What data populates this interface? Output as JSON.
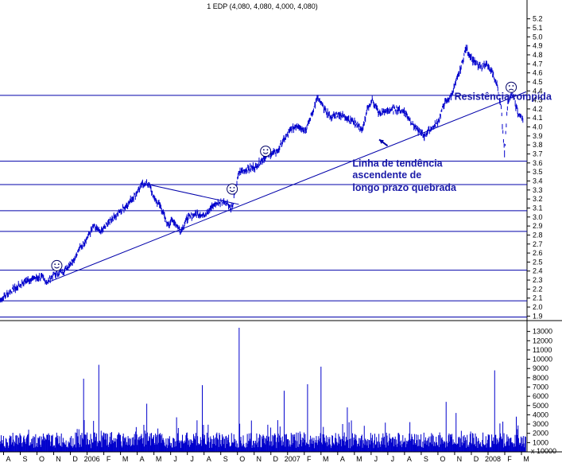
{
  "chart_data": [
    {
      "type": "candlestick",
      "title": "1 EDP (4,080, 4,080, 4,000, 4,080)",
      "ylim": [
        1.85,
        5.25
      ],
      "y_ticks": [
        "5.2",
        "5.1",
        "5.0",
        "4.9",
        "4.8",
        "4.7",
        "4.6",
        "4.5",
        "4.4",
        "4.3",
        "4.2",
        "4.1",
        "4.0",
        "3.9",
        "3.8",
        "3.7",
        "3.6",
        "3.5",
        "3.4",
        "3.3",
        "3.2",
        "3.1",
        "3.0",
        "2.9",
        "2.8",
        "2.7",
        "2.6",
        "2.5",
        "2.4",
        "2.3",
        "2.2",
        "2.1",
        "2.0",
        "1.9"
      ],
      "x_ticks": [
        "A",
        "S",
        "O",
        "N",
        "D",
        "2006",
        "F",
        "M",
        "A",
        "M",
        "J",
        "J",
        "A",
        "S",
        "O",
        "N",
        "D",
        "2007",
        "F",
        "M",
        "A",
        "M",
        "J",
        "J",
        "A",
        "S",
        "O",
        "N",
        "D",
        "2008",
        "F",
        "M"
      ],
      "x_tick_positions": [
        0.5,
        1.5,
        2.5,
        3.5,
        4.5,
        5.5,
        6.5,
        7.5,
        8.5,
        9.5,
        10.5,
        11.5,
        12.5,
        13.5,
        14.5,
        15.5,
        16.5,
        17.5,
        18.5,
        19.5,
        20.5,
        21.5,
        22.5,
        23.5,
        24.5,
        25.5,
        26.5,
        27.5,
        28.5,
        29.5,
        30.5,
        31.5
      ],
      "xlim": [
        0,
        31.5
      ],
      "price_path": [
        [
          0,
          2.08
        ],
        [
          0.5,
          2.16
        ],
        [
          1,
          2.22
        ],
        [
          1.5,
          2.29
        ],
        [
          2,
          2.32
        ],
        [
          2.5,
          2.33
        ],
        [
          2.8,
          2.27
        ],
        [
          3.2,
          2.36
        ],
        [
          3.8,
          2.4
        ],
        [
          4.3,
          2.5
        ],
        [
          4.8,
          2.66
        ],
        [
          5.2,
          2.76
        ],
        [
          5.6,
          2.9
        ],
        [
          6.0,
          2.83
        ],
        [
          6.5,
          2.94
        ],
        [
          7.0,
          3.03
        ],
        [
          7.5,
          3.12
        ],
        [
          8.0,
          3.22
        ],
        [
          8.5,
          3.36
        ],
        [
          8.9,
          3.37
        ],
        [
          9.2,
          3.22
        ],
        [
          9.6,
          3.12
        ],
        [
          10.0,
          2.92
        ],
        [
          10.4,
          2.96
        ],
        [
          10.8,
          2.84
        ],
        [
          11.2,
          2.98
        ],
        [
          11.7,
          3.04
        ],
        [
          12.2,
          3.02
        ],
        [
          12.8,
          3.13
        ],
        [
          13.4,
          3.18
        ],
        [
          13.9,
          3.1
        ],
        [
          14.3,
          3.5
        ],
        [
          14.8,
          3.53
        ],
        [
          15.3,
          3.56
        ],
        [
          15.7,
          3.64
        ],
        [
          16.2,
          3.7
        ],
        [
          16.6,
          3.73
        ],
        [
          17.0,
          3.86
        ],
        [
          17.4,
          3.96
        ],
        [
          17.8,
          4.02
        ],
        [
          18.3,
          3.96
        ],
        [
          18.7,
          4.16
        ],
        [
          19.0,
          4.32
        ],
        [
          19.4,
          4.2
        ],
        [
          19.8,
          4.11
        ],
        [
          20.3,
          4.14
        ],
        [
          20.8,
          4.1
        ],
        [
          21.3,
          4.04
        ],
        [
          21.7,
          3.96
        ],
        [
          22.0,
          4.2
        ],
        [
          22.3,
          4.3
        ],
        [
          22.7,
          4.14
        ],
        [
          23.2,
          4.18
        ],
        [
          23.7,
          4.2
        ],
        [
          24.2,
          4.17
        ],
        [
          24.6,
          4.06
        ],
        [
          25.0,
          3.96
        ],
        [
          25.4,
          3.9
        ],
        [
          25.8,
          3.98
        ],
        [
          26.2,
          4.05
        ],
        [
          26.6,
          4.26
        ],
        [
          27.0,
          4.34
        ],
        [
          27.5,
          4.6
        ],
        [
          27.9,
          4.88
        ],
        [
          28.3,
          4.74
        ],
        [
          28.7,
          4.66
        ],
        [
          29.1,
          4.7
        ],
        [
          29.5,
          4.58
        ],
        [
          29.8,
          4.44
        ],
        [
          30.0,
          4.2
        ],
        [
          30.2,
          3.72
        ],
        [
          30.4,
          4.3
        ],
        [
          30.7,
          4.36
        ],
        [
          31.0,
          4.15
        ],
        [
          31.3,
          4.08
        ]
      ],
      "horizontal_lines": [
        4.35,
        3.62,
        3.36,
        3.07,
        2.84,
        2.41,
        2.07,
        1.89
      ],
      "trend_lines": [
        {
          "from": [
            2.8,
            2.27
          ],
          "to": [
            31.5,
            4.39
          ]
        },
        {
          "from": [
            8.9,
            3.36
          ],
          "to": [
            14.3,
            3.14
          ]
        }
      ],
      "smileys": [
        {
          "x": 3.4,
          "y": 2.46,
          "mood": "happy"
        },
        {
          "x": 13.9,
          "y": 3.31,
          "mood": "happy"
        },
        {
          "x": 15.9,
          "y": 3.73,
          "mood": "happy"
        },
        {
          "x": 30.6,
          "y": 4.44,
          "mood": "sad"
        }
      ],
      "annotations": [
        {
          "text": "Resistência rompida",
          "x": 27.2,
          "y": 4.3
        },
        {
          "text": "Linha de tendência",
          "x": 21.1,
          "y": 3.56
        },
        {
          "text": "ascendente de",
          "x": 21.1,
          "y": 3.43
        },
        {
          "text": "longo prazo quebrada",
          "x": 21.1,
          "y": 3.29
        }
      ],
      "arrow": {
        "from": [
          23.2,
          3.79
        ],
        "to": [
          22.7,
          3.86
        ]
      },
      "colors": {
        "series": "#0000cc",
        "lines": "#0000aa",
        "annotation": "#1a1aa8",
        "smiley": "#000066"
      }
    },
    {
      "type": "bar",
      "title": "",
      "ylim": [
        0,
        14000
      ],
      "y_ticks": [
        "13000",
        "12000",
        "11000",
        "10000",
        "9000",
        "8000",
        "7000",
        "6000",
        "5000",
        "4000",
        "3000",
        "2000",
        "1000"
      ],
      "y_tick_values": [
        13000,
        12000,
        11000,
        10000,
        9000,
        8000,
        7000,
        6000,
        5000,
        4000,
        3000,
        2000,
        1000
      ],
      "volume_spikes": [
        [
          5.0,
          7900
        ],
        [
          5.9,
          9400
        ],
        [
          8.8,
          5200
        ],
        [
          12.1,
          7200
        ],
        [
          14.3,
          13400
        ],
        [
          17.0,
          6600
        ],
        [
          18.4,
          7300
        ],
        [
          19.2,
          9200
        ],
        [
          20.8,
          4800
        ],
        [
          26.7,
          5400
        ],
        [
          27.3,
          4200
        ],
        [
          29.6,
          8800
        ],
        [
          30.9,
          3800
        ]
      ],
      "scale_note": "x 10000",
      "colors": {
        "bars": "#0000cc"
      }
    }
  ]
}
